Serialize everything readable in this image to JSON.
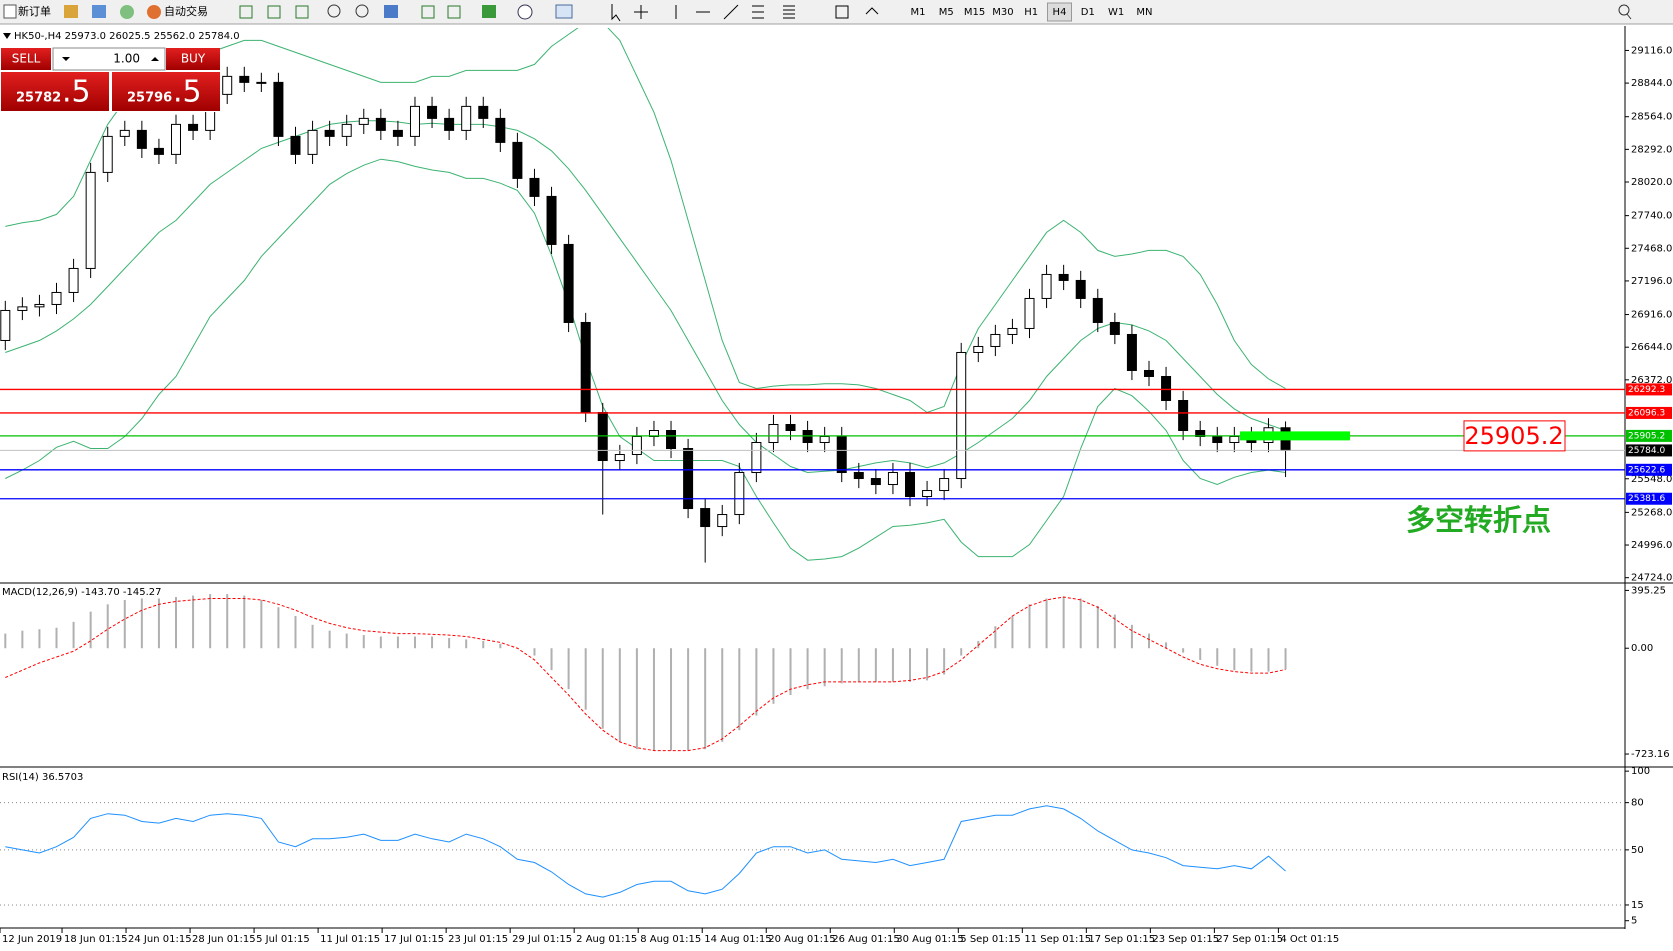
{
  "toolbar": {
    "new_order": "新订单",
    "auto_trade": "自动交易",
    "timeframes": [
      "M1",
      "M5",
      "M15",
      "M30",
      "H1",
      "H4",
      "D1",
      "W1",
      "MN"
    ],
    "active_timeframe": "H4"
  },
  "trade_panel": {
    "sell": "SELL",
    "buy": "BUY",
    "lots": "1.00",
    "sell_price": "25782",
    "sell_fraction": ".5",
    "buy_price": "25796",
    "buy_fraction": ".5"
  },
  "chart_data": [
    {
      "type": "candlestick",
      "title": "HK50-,H4  25973.0 26025.5 25562.0 25784.0",
      "open": [
        26700,
        26950,
        26980,
        27000,
        27100,
        27300,
        28100,
        28400,
        28450,
        28300,
        28250,
        28500,
        28450,
        28750,
        28900,
        28850,
        28850,
        28400,
        28250,
        28450,
        28400,
        28500,
        28550,
        28450,
        28400,
        28650,
        28550,
        28450,
        28650,
        28550,
        28350,
        28050,
        27900,
        27500,
        26850,
        26100,
        25700,
        25750,
        25900,
        25950,
        25800,
        25300,
        25150,
        25250,
        25600,
        25850,
        26000,
        25950,
        25850,
        25900,
        25600,
        25550,
        25500,
        25600,
        25400,
        25450,
        25550,
        26600,
        26650,
        26750,
        26800,
        27050,
        27250,
        27200,
        27050,
        26850,
        26750,
        26450,
        26400,
        26200,
        25950,
        25900,
        25850,
        25900,
        25850,
        25973
      ],
      "high": [
        27030,
        27060,
        27080,
        27180,
        27380,
        28180,
        28480,
        28530,
        28530,
        28380,
        28580,
        28580,
        28830,
        28980,
        28980,
        28930,
        28930,
        28480,
        28530,
        28530,
        28580,
        28630,
        28630,
        28530,
        28730,
        28730,
        28630,
        28730,
        28730,
        28630,
        28430,
        28130,
        27980,
        27580,
        26930,
        26180,
        25830,
        25980,
        26030,
        26030,
        25880,
        25380,
        25330,
        25680,
        25930,
        26080,
        26080,
        26030,
        25980,
        25980,
        25680,
        25630,
        25680,
        25680,
        25530,
        25630,
        26680,
        26730,
        26830,
        26880,
        27130,
        27330,
        27330,
        27280,
        27130,
        26930,
        26830,
        26530,
        26480,
        26280,
        26030,
        25980,
        25980,
        25980,
        26053,
        26025.5
      ],
      "low": [
        26620,
        26870,
        26900,
        26920,
        27020,
        27220,
        28020,
        28320,
        28220,
        28170,
        28170,
        28370,
        28370,
        28670,
        28770,
        28770,
        28320,
        28170,
        28170,
        28320,
        28320,
        28420,
        28370,
        28320,
        28320,
        28470,
        28370,
        28370,
        28470,
        28270,
        27970,
        27820,
        27420,
        26770,
        26020,
        25250,
        25620,
        25670,
        25820,
        25720,
        25220,
        24850,
        25070,
        25170,
        25520,
        25770,
        25870,
        25770,
        25770,
        25520,
        25470,
        25420,
        25420,
        25320,
        25320,
        25370,
        25470,
        26520,
        26570,
        26670,
        26720,
        26970,
        27120,
        26970,
        26770,
        26670,
        26370,
        26320,
        26120,
        25870,
        25820,
        25770,
        25770,
        25770,
        25770,
        25562
      ],
      "close": [
        26950,
        26980,
        27000,
        27100,
        27300,
        28100,
        28400,
        28450,
        28300,
        28250,
        28500,
        28450,
        28750,
        28900,
        28850,
        28850,
        28400,
        28250,
        28450,
        28400,
        28500,
        28550,
        28450,
        28400,
        28650,
        28550,
        28450,
        28650,
        28550,
        28350,
        28050,
        27900,
        27500,
        26850,
        26100,
        25700,
        25750,
        25900,
        25950,
        25800,
        25300,
        25150,
        25250,
        25600,
        25850,
        26000,
        25950,
        25850,
        25900,
        25600,
        25550,
        25500,
        25600,
        25400,
        25450,
        25550,
        26600,
        26650,
        26750,
        26800,
        27050,
        27250,
        27200,
        27050,
        26850,
        26750,
        26450,
        26400,
        26200,
        25950,
        25900,
        25850,
        25900,
        25850,
        25973,
        25784
      ],
      "bands": {
        "color": "#3cb371",
        "upper": [
          27650,
          27680,
          27700,
          27750,
          27900,
          28200,
          28500,
          28700,
          28850,
          28950,
          29000,
          29050,
          29100,
          29150,
          29200,
          29200,
          29150,
          29100,
          29050,
          29000,
          28950,
          28900,
          28850,
          28850,
          28850,
          28900,
          28900,
          28950,
          28950,
          28950,
          28950,
          29000,
          29150,
          29250,
          29350,
          29350,
          29200,
          28900,
          28600,
          28200,
          27700,
          27200,
          26700,
          26350,
          26300,
          26320,
          26330,
          26330,
          26340,
          26340,
          26330,
          26300,
          26250,
          26200,
          26100,
          26150,
          26500,
          26800,
          27000,
          27200,
          27400,
          27600,
          27700,
          27600,
          27450,
          27400,
          27420,
          27450,
          27450,
          27400,
          27250,
          27000,
          26700,
          26500,
          26380,
          26300
        ],
        "middle": [
          26600,
          26650,
          26700,
          26780,
          26880,
          27000,
          27150,
          27300,
          27450,
          27600,
          27700,
          27850,
          28000,
          28100,
          28200,
          28300,
          28350,
          28400,
          28450,
          28500,
          28520,
          28530,
          28530,
          28520,
          28500,
          28510,
          28500,
          28500,
          28500,
          28480,
          28450,
          28380,
          28280,
          28130,
          27950,
          27750,
          27550,
          27350,
          27150,
          26950,
          26700,
          26450,
          26200,
          26000,
          25850,
          25750,
          25650,
          25600,
          25610,
          25620,
          25650,
          25680,
          25700,
          25680,
          25640,
          25680,
          25760,
          25850,
          25950,
          26050,
          26200,
          26400,
          26550,
          26700,
          26800,
          26850,
          26830,
          26780,
          26700,
          26550,
          26400,
          26250,
          26130,
          26050,
          26000,
          25950
        ],
        "lower": [
          25550,
          25620,
          25700,
          25810,
          25860,
          25800,
          25800,
          25900,
          26050,
          26250,
          26400,
          26650,
          26900,
          27050,
          27200,
          27400,
          27550,
          27700,
          27850,
          28000,
          28090,
          28160,
          28210,
          28190,
          28150,
          28120,
          28100,
          28050,
          28050,
          28010,
          27950,
          27760,
          27410,
          27010,
          26550,
          26150,
          25900,
          25800,
          25700,
          25700,
          25700,
          25700,
          25700,
          25650,
          25400,
          25180,
          24970,
          24870,
          24880,
          24900,
          24970,
          25060,
          25150,
          25160,
          25180,
          25210,
          25020,
          24900,
          24900,
          24900,
          25000,
          25200,
          25400,
          25800,
          26150,
          26300,
          26240,
          26110,
          25950,
          25700,
          25550,
          25500,
          25560,
          25600,
          25620,
          25600
        ]
      },
      "ylim": [
        24688,
        29303
      ],
      "yticks": [
        {
          "value": 29116,
          "label": "29116.0"
        },
        {
          "value": 28844,
          "label": "28844.0"
        },
        {
          "value": 28564,
          "label": "28564.0"
        },
        {
          "value": 28292,
          "label": "28292.0"
        },
        {
          "value": 28020,
          "label": "28020.0"
        },
        {
          "value": 27740,
          "label": "27740.0"
        },
        {
          "value": 27468,
          "label": "27468.0"
        },
        {
          "value": 27196,
          "label": "27196.0"
        },
        {
          "value": 26916,
          "label": "26916.0"
        },
        {
          "value": 26644,
          "label": "26644.0"
        },
        {
          "value": 26372,
          "label": "26372.0"
        },
        {
          "value": 25548,
          "label": "25548.0"
        },
        {
          "value": 25268,
          "label": "25268.0"
        },
        {
          "value": 24996,
          "label": "24996.0"
        },
        {
          "value": 24724,
          "label": "24724.0"
        }
      ],
      "levels": [
        {
          "price": 26292.3,
          "color": "#ff0000"
        },
        {
          "price": 26096.3,
          "color": "#ff0000"
        },
        {
          "price": 25905.2,
          "color": "#00c000"
        },
        {
          "price": 25622.6,
          "color": "#0000ff"
        },
        {
          "price": 25381.6,
          "color": "#0000ff"
        }
      ],
      "bid": {
        "value": 25784,
        "label": "25784.0"
      },
      "annotation": "多空转折点",
      "x_labels": [
        "12 Jun 2019",
        "18 Jun 01:15",
        "24 Jun 01:15",
        "28 Jun 01:15",
        "5 Jul 01:15",
        "11 Jul 01:15",
        "17 Jul 01:15",
        "23 Jul 01:15",
        "29 Jul 01:15",
        "2 Aug 01:15",
        "8 Aug 01:15",
        "14 Aug 01:15",
        "20 Aug 01:15",
        "26 Aug 01:15",
        "30 Aug 01:15",
        "5 Sep 01:15",
        "11 Sep 01:15",
        "17 Sep 01:15",
        "23 Sep 01:15",
        "27 Sep 01:15",
        "4 Oct 01:15"
      ]
    },
    {
      "type": "macd",
      "title": "MACD(12,26,9) -143.70 -145.27",
      "histogram": {
        "color": "#b0b0b0",
        "values": [
          100,
          120,
          130,
          140,
          180,
          250,
          300,
          330,
          340,
          340,
          350,
          360,
          370,
          370,
          360,
          330,
          280,
          220,
          160,
          120,
          100,
          90,
          80,
          80,
          80,
          80,
          70,
          60,
          50,
          30,
          0,
          -50,
          -150,
          -280,
          -420,
          -550,
          -640,
          -690,
          -700,
          -700,
          -700,
          -690,
          -640,
          -560,
          -460,
          -380,
          -320,
          -280,
          -260,
          -240,
          -230,
          -230,
          -230,
          -230,
          -220,
          -180,
          -50,
          50,
          150,
          220,
          300,
          340,
          350,
          340,
          290,
          230,
          160,
          100,
          40,
          -30,
          -80,
          -120,
          -150,
          -160,
          -160,
          -143.7
        ]
      },
      "signal": {
        "color": "#ff0000",
        "values": [
          -200,
          -150,
          -100,
          -60,
          -20,
          50,
          130,
          200,
          260,
          300,
          320,
          330,
          340,
          340,
          340,
          330,
          300,
          260,
          210,
          170,
          140,
          120,
          110,
          100,
          100,
          95,
          90,
          80,
          60,
          40,
          0,
          -80,
          -200,
          -320,
          -450,
          -560,
          -640,
          -680,
          -700,
          -700,
          -700,
          -680,
          -620,
          -530,
          -430,
          -340,
          -280,
          -250,
          -230,
          -230,
          -230,
          -230,
          -230,
          -220,
          -200,
          -160,
          -80,
          20,
          120,
          220,
          290,
          330,
          350,
          330,
          280,
          200,
          120,
          60,
          0,
          -60,
          -110,
          -140,
          -160,
          -170,
          -170,
          -145.27
        ]
      },
      "ylim": [
        -805,
        439
      ],
      "yticks": [
        395.25,
        {
          "value": 0,
          "label": "0.00"
        },
        -723.16
      ]
    },
    {
      "type": "rsi",
      "title": "RSI(14) 36.5703",
      "color": "#1e90ff",
      "values": [
        52,
        50,
        48,
        52,
        58,
        70,
        73,
        72,
        68,
        67,
        70,
        68,
        72,
        73,
        72,
        70,
        55,
        52,
        57,
        57,
        58,
        60,
        56,
        56,
        60,
        57,
        55,
        60,
        57,
        52,
        44,
        42,
        36,
        28,
        22,
        20,
        23,
        28,
        30,
        30,
        24,
        22,
        25,
        35,
        48,
        52,
        52,
        48,
        50,
        44,
        43,
        42,
        44,
        40,
        42,
        44,
        68,
        70,
        72,
        72,
        76,
        78,
        76,
        70,
        62,
        56,
        50,
        48,
        45,
        40,
        39,
        38,
        40,
        38,
        46,
        36.5703
      ],
      "ylim": [
        1,
        102
      ],
      "yticks": [
        100,
        80,
        50,
        15,
        5
      ],
      "levels": [
        80,
        50,
        15
      ]
    }
  ]
}
